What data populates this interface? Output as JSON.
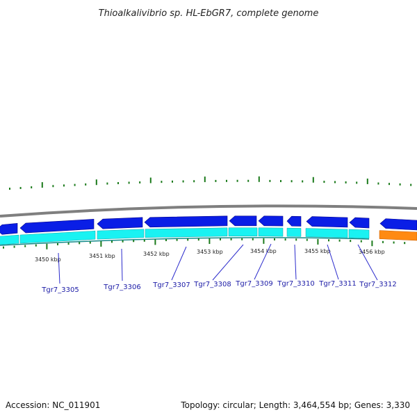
{
  "header": {
    "title": "Thioalkalivibrio sp. HL-EbGR7, complete genome"
  },
  "footer": {
    "accession": "Accession: NC_011901",
    "summary": "Topology: circular; Length: 3,464,554 bp; Genes: 3,330"
  },
  "map": {
    "kbp_labels": [
      "3450 kbp",
      "3451 kbp",
      "3452 kbp",
      "3453 kbp",
      "3454 kbp",
      "3455 kbp",
      "3456 kbp"
    ],
    "gene_labels": [
      "Tgr7_3305",
      "Tgr7_3306",
      "Tgr7_3307",
      "Tgr7_3308",
      "Tgr7_3309",
      "Tgr7_3310",
      "Tgr7_3311",
      "Tgr7_3312"
    ],
    "colors": {
      "backbone": "#7f7f7f",
      "forward_cds": "#0a1ee6",
      "reverse_cds": "#19f2f2",
      "other_feature": "#ff8a12",
      "ticks": "#1a7a1a",
      "gene_label": "#1a1aa6",
      "label_line": "#2a2acc"
    }
  }
}
